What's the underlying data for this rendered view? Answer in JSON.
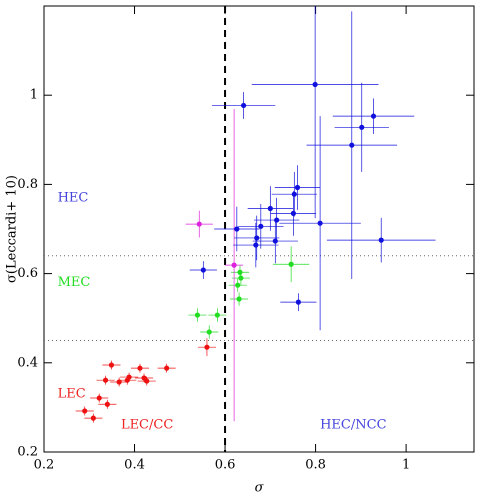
{
  "chart_data": {
    "type": "scatter",
    "x_label": "σ",
    "y_label": "σ(Leccardi+ 10)",
    "xlim": [
      0.2,
      1.15
    ],
    "ylim": [
      0.2,
      1.2
    ],
    "xticks": [
      0.2,
      0.4,
      0.6,
      0.8,
      1
    ],
    "yticks": [
      0.2,
      0.4,
      0.6,
      0.8,
      1
    ],
    "vline": 0.6,
    "hlines": [
      0.64,
      0.45
    ],
    "annotations": [
      {
        "text": "HEC",
        "x": 0.23,
        "y": 0.77,
        "color": "#4444dd"
      },
      {
        "text": "MEC",
        "x": 0.23,
        "y": 0.58,
        "color": "#22dd22"
      },
      {
        "text": "LEC",
        "x": 0.23,
        "y": 0.33,
        "color": "#ee2222"
      },
      {
        "text": "LEC/CC",
        "x": 0.37,
        "y": 0.26,
        "color": "#ee2222"
      },
      {
        "text": "HEC/NCC",
        "x": 0.81,
        "y": 0.26,
        "color": "#4444dd"
      }
    ],
    "series": [
      {
        "color": "#ee1111",
        "x": [
          0.349,
          0.412,
          0.471,
          0.336,
          0.384,
          0.366,
          0.421,
          0.388,
          0.427,
          0.322,
          0.34,
          0.29,
          0.309,
          0.56
        ],
        "y": [
          0.395,
          0.388,
          0.388,
          0.361,
          0.361,
          0.357,
          0.366,
          0.368,
          0.359,
          0.321,
          0.307,
          0.292,
          0.276,
          0.435
        ],
        "xerr": [
          0.02,
          0.02,
          0.02,
          0.02,
          0.02,
          0.02,
          0.02,
          0.02,
          0.02,
          0.02,
          0.02,
          0.02,
          0.02,
          0.02
        ],
        "yerr": [
          0.01,
          0.01,
          0.01,
          0.01,
          0.01,
          0.01,
          0.01,
          0.01,
          0.01,
          0.01,
          0.01,
          0.01,
          0.01,
          0.02
        ]
      },
      {
        "color": "#22dd22",
        "x": [
          0.539,
          0.583,
          0.565,
          0.631,
          0.633,
          0.635,
          0.628,
          0.746
        ],
        "y": [
          0.507,
          0.507,
          0.469,
          0.543,
          0.603,
          0.59,
          0.574,
          0.621
        ],
        "xerr": [
          0.02,
          0.02,
          0.02,
          0.02,
          0.02,
          0.02,
          0.02,
          0.04
        ],
        "yerr": [
          0.015,
          0.015,
          0.015,
          0.015,
          0.015,
          0.015,
          0.015,
          0.04
        ]
      },
      {
        "color": "#dd22dd",
        "x": [
          0.543,
          0.62
        ],
        "y": [
          0.711,
          0.619
        ],
        "xerr": [
          0.03,
          0.02
        ],
        "yerr": [
          0.03,
          0.35
        ]
      },
      {
        "color": "#1111dd",
        "x": [
          0.552,
          0.641,
          0.799,
          0.928,
          0.902,
          0.88,
          0.76,
          0.753,
          0.751,
          0.7,
          0.714,
          0.679,
          0.626,
          0.67,
          0.668,
          0.711,
          0.81,
          0.945,
          0.762
        ],
        "y": [
          0.608,
          0.977,
          1.024,
          0.953,
          0.928,
          0.888,
          0.793,
          0.778,
          0.735,
          0.746,
          0.72,
          0.706,
          0.7,
          0.68,
          0.664,
          0.673,
          0.713,
          0.675,
          0.536
        ],
        "xerr": [
          0.03,
          0.07,
          0.14,
          0.09,
          0.06,
          0.1,
          0.05,
          0.05,
          0.05,
          0.05,
          0.05,
          0.05,
          0.05,
          0.05,
          0.05,
          0.05,
          0.09,
          0.12,
          0.04
        ],
        "yerr": [
          0.02,
          0.03,
          0.3,
          0.04,
          0.1,
          0.3,
          0.05,
          0.05,
          0.05,
          0.05,
          0.05,
          0.05,
          0.05,
          0.05,
          0.05,
          0.05,
          0.24,
          0.05,
          0.02
        ]
      }
    ]
  }
}
